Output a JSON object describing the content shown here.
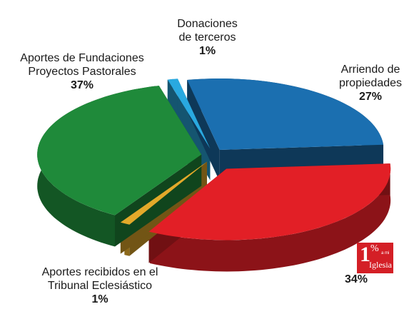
{
  "chart_data": {
    "type": "pie",
    "style": "3d-exploded",
    "slices": [
      {
        "label_lines": [
          "Donaciones",
          "de terceros"
        ],
        "value": 1,
        "pct_label": "1%",
        "color": "#29a9e0"
      },
      {
        "label_lines": [
          "Arriendo de",
          "propiedades"
        ],
        "value": 27,
        "pct_label": "27%",
        "color": "#1b6fb0"
      },
      {
        "label_lines": [],
        "value": 34,
        "pct_label": "34%",
        "color": "#e21f26"
      },
      {
        "label_lines": [
          "Aportes recibidos en el",
          "Tribunal Eclesiástico"
        ],
        "value": 1,
        "pct_label": "1%",
        "color": "#e3a92a"
      },
      {
        "label_lines": [
          "Aportes de Fundaciones",
          "Proyectos Pastorales"
        ],
        "value": 37,
        "pct_label": "37%",
        "color": "#1f8a3a"
      }
    ]
  },
  "logo": {
    "one": "1",
    "percent": "%",
    "ami": "a mi",
    "word": "Iglesia",
    "color": "#d41f26"
  }
}
